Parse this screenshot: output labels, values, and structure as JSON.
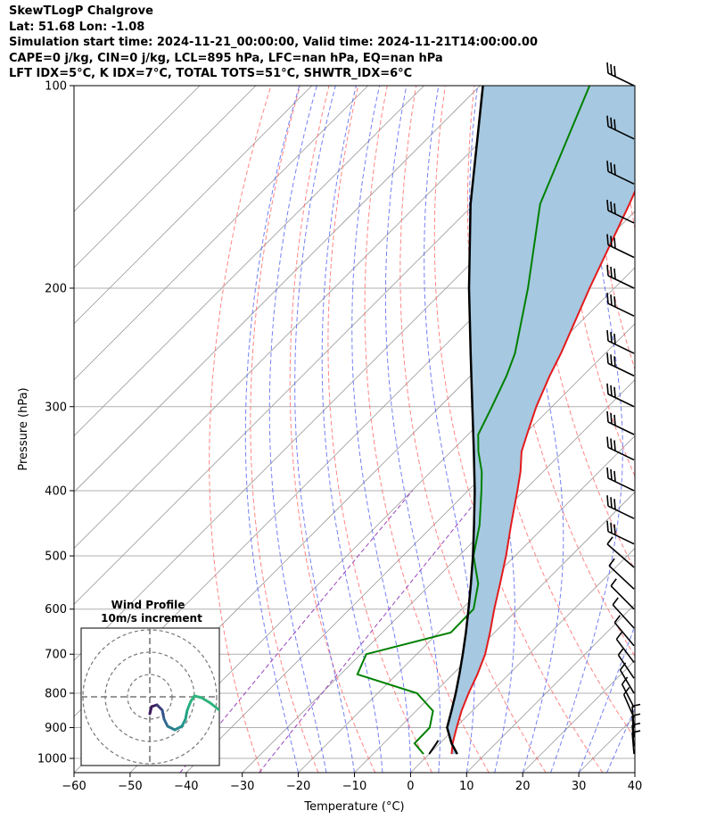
{
  "header": {
    "line1": "SkewTLogP Chalgrove",
    "line2": "Lat: 51.68   Lon: -1.08",
    "line3": "Simulation start time: 2024-11-21_00:00:00, Valid time: 2024-11-21T14:00:00.00",
    "line4": "CAPE=0 j/kg, CIN=0 j/kg, LCL=895 hPa, LFC=nan hPa, EQ=nan hPa",
    "line5": "LFT IDX=5°C, K IDX=7°C, TOTAL TOTS=51°C, SHWTR_IDX=6°C"
  },
  "chart_data": {
    "type": "line",
    "xlabel": "Temperature (°C)",
    "ylabel": "Pressure (hPa)",
    "xlim": [
      -60,
      40
    ],
    "ylim": [
      1050,
      100
    ],
    "y_scale": "log",
    "x_ticks": [
      -60,
      -50,
      -40,
      -30,
      -20,
      -10,
      0,
      10,
      20,
      30,
      40
    ],
    "x_tick_labels": [
      "−60",
      "−50",
      "−40",
      "−30",
      "−20",
      "−10",
      "0",
      "10",
      "20",
      "30",
      "40"
    ],
    "y_ticks": [
      100,
      200,
      300,
      400,
      500,
      600,
      700,
      800,
      900,
      1000
    ],
    "y_tick_labels": [
      "100",
      "200",
      "300",
      "400",
      "500",
      "600",
      "700",
      "800",
      "900",
      "1000"
    ],
    "grid": true,
    "colors": {
      "temperature": "#e41a1c",
      "dewpoint": "#008000",
      "parcel": "#000000",
      "shade": "#a6c8e0",
      "dry_adiabats": "#ff6666",
      "moist_adiabats": "#4455ee",
      "isotherms": "#999999",
      "mixing_ratio": "#9944bb"
    },
    "series": [
      {
        "key": "temperature",
        "pressure": [
          985,
          950,
          900,
          850,
          800,
          750,
          700,
          650,
          600,
          550,
          500,
          450,
          400,
          375,
          350,
          330,
          300,
          270,
          250,
          200,
          150,
          100
        ],
        "values": [
          4.0,
          2.3,
          0.2,
          -1.9,
          -3.8,
          -5.6,
          -7.8,
          -10.8,
          -14.2,
          -17.7,
          -21.6,
          -26.2,
          -31.2,
          -34.0,
          -37.4,
          -39.5,
          -42.8,
          -45.9,
          -47.9,
          -54.4,
          -62.3,
          -74.1
        ]
      },
      {
        "key": "dewpoint",
        "pressure": [
          985,
          950,
          900,
          850,
          800,
          750,
          700,
          650,
          600,
          550,
          500,
          450,
          400,
          375,
          350,
          330,
          300,
          270,
          250,
          200,
          150,
          100
        ],
        "values": [
          -1.0,
          -4.5,
          -4.6,
          -7.0,
          -13.0,
          -27.0,
          -29.0,
          -17.8,
          -17.9,
          -21.6,
          -27.4,
          -31.8,
          -37.6,
          -40.9,
          -45.1,
          -48.2,
          -50.7,
          -53.6,
          -56.1,
          -65.4,
          -78.2,
          -90.5
        ]
      },
      {
        "key": "parcel",
        "pressure": [
          985,
          950,
          900,
          850,
          800,
          750,
          700,
          650,
          600,
          550,
          500,
          450,
          400,
          350,
          300,
          250,
          200,
          150,
          100
        ],
        "values": [
          5.0,
          2.1,
          -1.5,
          -3.7,
          -6.1,
          -8.8,
          -11.8,
          -15.1,
          -18.8,
          -22.9,
          -27.5,
          -32.8,
          -38.8,
          -45.9,
          -54.2,
          -64.0,
          -75.9,
          -90.6,
          -109.5
        ]
      },
      {
        "key": "parcel-dry",
        "pressure": [
          985,
          950,
          940
        ],
        "values": [
          0.0,
          -0.6,
          -0.8
        ]
      }
    ],
    "wind_barbs_pressure": [
      985,
      960,
      930,
      900,
      870,
      840,
      800,
      760,
      720,
      680,
      640,
      600,
      560,
      520,
      480,
      440,
      400,
      360,
      330,
      300,
      270,
      250,
      220,
      200,
      180,
      160,
      140,
      120,
      100
    ],
    "inset": {
      "title": "Wind Profile",
      "subtitle": "10m/s increment"
    }
  }
}
